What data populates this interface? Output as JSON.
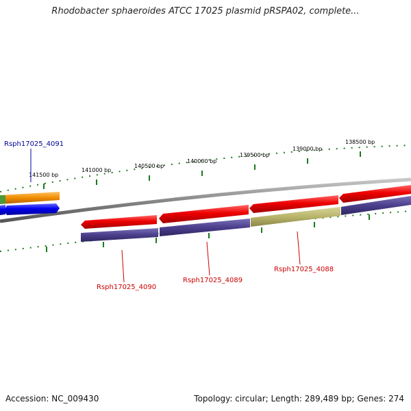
{
  "title": "Rhodobacter sphaeroides ATCC 17025 plasmid pRSPA02, complete...",
  "footer": {
    "accession": "Accession: NC_009430",
    "summary": "Topology: circular; Length: 289,489 bp; Genes: 274"
  },
  "ruler_labels": [
    "141500 bp",
    "141000 bp",
    "140500 bp",
    "140000 bp",
    "139500 bp",
    "139000 bp",
    "138500 bp"
  ],
  "gene_labels": {
    "rsph4091": "Rsph17025_4091",
    "rsph4090": "Rsph17025_4090",
    "rsph4089": "Rsph17025_4089",
    "rsph4088": "Rsph17025_4088"
  },
  "colors": {
    "backbone": "#888888",
    "forward_gene": "#0000ee",
    "reverse_gene": "#ee0000",
    "cds_track": "#4b3f8c",
    "cds_track_highlight": "#b8b46a",
    "orange_feature": "#f08c00",
    "green_feature": "#4a9a3a",
    "ruler_ticks": "#1a7a1a",
    "label_reverse": "#cc0000",
    "label_forward": "#00009a"
  }
}
